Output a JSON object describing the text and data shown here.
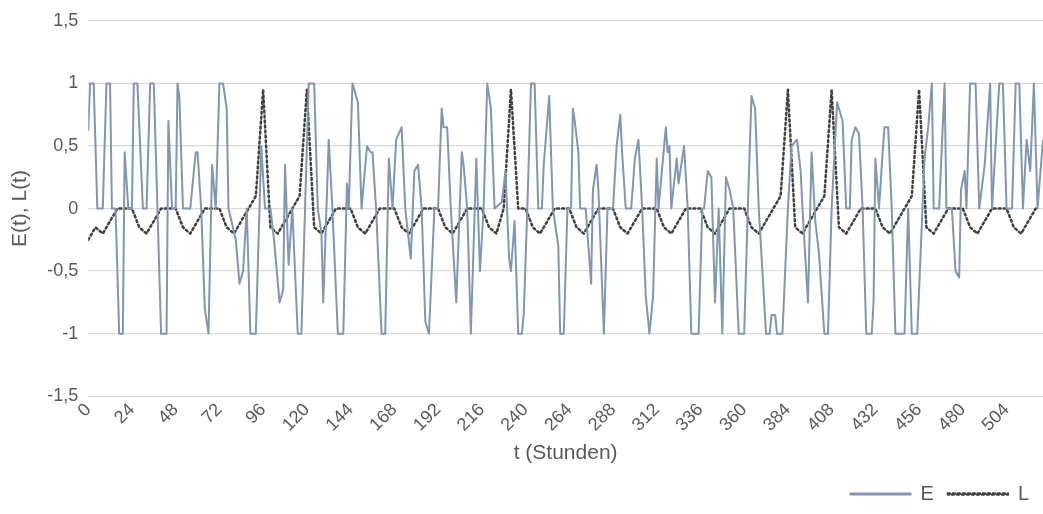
{
  "chart_data": {
    "type": "line",
    "xlabel": "t (Stunden)",
    "ylabel": "E(t), L(t)",
    "xlim": [
      0,
      524
    ],
    "xticks": [
      0,
      24,
      48,
      72,
      96,
      120,
      144,
      168,
      192,
      216,
      240,
      264,
      288,
      312,
      336,
      360,
      384,
      408,
      432,
      456,
      480,
      504
    ],
    "ylim": [
      -1.5,
      1.5
    ],
    "yticks": [
      {
        "value": -1.5,
        "label": "-1,5"
      },
      -1,
      {
        "value": -0.5,
        "label": "-0,5"
      },
      0,
      {
        "value": 0.5,
        "label": "0,5"
      },
      1,
      {
        "value": 1.5,
        "label": "1,5"
      }
    ],
    "grid": "y",
    "legend": "bottom right",
    "marker": "none",
    "series": [
      {
        "name": "E",
        "color": "#7f97b4",
        "line_style": "solid",
        "x": [
          0,
          1,
          3,
          5,
          8,
          10,
          12,
          13,
          15,
          17,
          19,
          20,
          22,
          24,
          25,
          27,
          30,
          32,
          34,
          36,
          38,
          40,
          43,
          44,
          46,
          48,
          49,
          50,
          52,
          56,
          59,
          60,
          62,
          64,
          66,
          68,
          70,
          72,
          74,
          76,
          77,
          81,
          83,
          85,
          87,
          89,
          92,
          94,
          95,
          97,
          100,
          102,
          105,
          107,
          108,
          110,
          112,
          115,
          117,
          119,
          121,
          124,
          126,
          128,
          129,
          132,
          134,
          137,
          140,
          142,
          143,
          145,
          148,
          150,
          153,
          155,
          156,
          158,
          161,
          163,
          165,
          167,
          169,
          172,
          174,
          177,
          179,
          181,
          183,
          185,
          187,
          190,
          192,
          194,
          195,
          197,
          199,
          202,
          205,
          206,
          208,
          210,
          213,
          215,
          217,
          219,
          221,
          223,
          227,
          229,
          231,
          232,
          234,
          236,
          238,
          239,
          241,
          243,
          245,
          247,
          249,
          250,
          253,
          255,
          258,
          259,
          261,
          263,
          265,
          266,
          267,
          269,
          270,
          273,
          276,
          277,
          279,
          280,
          283,
          285,
          288,
          290,
          292,
          293,
          295,
          298,
          300,
          302,
          304,
          306,
          308,
          310,
          312,
          313,
          317,
          318,
          319,
          320,
          323,
          324,
          327,
          329,
          331,
          335,
          337,
          338,
          340,
          342,
          344,
          346,
          348,
          350,
          352,
          354,
          357,
          360,
          362,
          364,
          366,
          368,
          372,
          374,
          375,
          377,
          378,
          381,
          384,
          386,
          389,
          391,
          392,
          395,
          397,
          399,
          401,
          404,
          406,
          408,
          411,
          414,
          416,
          418,
          419,
          421,
          423,
          425,
          427,
          430,
          431,
          432,
          434,
          436,
          437,
          439,
          441,
          443,
          448,
          450,
          452,
          455,
          459,
          461,
          463,
          464,
          467,
          470,
          471,
          474,
          476,
          478,
          479,
          481,
          482,
          484,
          487,
          489,
          492,
          495,
          496,
          500,
          502,
          504,
          507,
          509,
          511,
          513,
          515,
          517,
          519,
          521,
          524
        ],
        "values": [
          0.62,
          1,
          1,
          0,
          0,
          1,
          1,
          0,
          0,
          -1,
          -1,
          0.45,
          0,
          0,
          1,
          1,
          0,
          0,
          1,
          1,
          0,
          -1,
          -1,
          0.7,
          0,
          0,
          1,
          0.9,
          0,
          0,
          0.45,
          0.45,
          0,
          -0.8,
          -1,
          0.35,
          0,
          1,
          1,
          0.8,
          0,
          -0.25,
          -0.6,
          -0.5,
          0,
          -1,
          -1,
          0,
          0.5,
          0,
          0,
          -0.25,
          -0.75,
          -0.65,
          0.35,
          -0.45,
          0,
          -1,
          -1,
          0,
          1,
          1,
          0,
          -0.2,
          -0.75,
          0.55,
          0,
          -1,
          -1,
          0.2,
          0,
          1,
          0.85,
          0,
          0.5,
          0.45,
          0.45,
          0,
          -1,
          -1,
          0.4,
          0,
          0.55,
          0.65,
          0,
          -0.4,
          0.3,
          0.35,
          0,
          -0.9,
          -1,
          0,
          0,
          0.8,
          0.65,
          0.65,
          0,
          -0.75,
          0.45,
          0.35,
          0,
          -1,
          0.4,
          -0.5,
          0,
          1,
          0.8,
          0,
          0.05,
          0.3,
          -0.4,
          -0.5,
          -0.1,
          -1,
          -1,
          -0.85,
          0,
          1,
          1,
          0,
          0,
          0.35,
          0.9,
          0,
          -0.3,
          -1,
          -1,
          0,
          0,
          0.8,
          0.7,
          0.45,
          0,
          0,
          -0.6,
          0.15,
          0.35,
          0.15,
          -1,
          0,
          0,
          0.5,
          0.75,
          0.45,
          0,
          0,
          0.4,
          0.55,
          0,
          -0.7,
          -1,
          -0.7,
          0.4,
          0,
          0.65,
          0.45,
          0.5,
          0,
          0.4,
          0.2,
          0.5,
          0,
          -1,
          -1,
          0,
          0,
          0.3,
          0.25,
          -0.75,
          0,
          -1,
          0.25,
          0.15,
          0,
          -1,
          -1,
          0,
          0.9,
          0.8,
          0,
          -1,
          -1,
          -0.85,
          -0.85,
          -1,
          -1,
          0,
          0.5,
          0.55,
          0.3,
          0,
          -0.75,
          0.45,
          -0.1,
          -0.35,
          -1,
          -1,
          0,
          0.85,
          0.7,
          0,
          0,
          0.55,
          0.65,
          0.6,
          0,
          -1,
          -1,
          -0.75,
          0.4,
          0,
          0.45,
          0.65,
          0.65,
          0,
          -1,
          -1,
          0,
          -1,
          -1,
          0.4,
          0.65,
          1,
          0,
          0,
          1,
          0,
          0,
          -0.5,
          -0.55,
          0.15,
          0.3,
          0,
          1,
          1,
          0,
          0.35,
          1,
          0,
          1,
          1,
          0,
          0,
          1,
          1,
          0,
          0.55,
          0.3,
          1,
          0,
          0.55
        ]
      },
      {
        "name": "L",
        "color": "#404040",
        "line_style": "dotted",
        "x": [
          0,
          4,
          8,
          12,
          16,
          20,
          24,
          28,
          32,
          36,
          40,
          44,
          48,
          52,
          56,
          60,
          64,
          68,
          72,
          76,
          80,
          84,
          88,
          92,
          96,
          100,
          104,
          108,
          112,
          116,
          120,
          124,
          128,
          132,
          136,
          140,
          144,
          148,
          152,
          156,
          160,
          164,
          168,
          172,
          176,
          180,
          184,
          188,
          192,
          196,
          200,
          204,
          208,
          212,
          216,
          220,
          224,
          228,
          232,
          236,
          240,
          244,
          248,
          252,
          256,
          260,
          264,
          268,
          272,
          276,
          280,
          284,
          288,
          292,
          296,
          300,
          304,
          308,
          312,
          316,
          320,
          324,
          328,
          332,
          336,
          340,
          344,
          348,
          352,
          356,
          360,
          364,
          368,
          372,
          376,
          380,
          384,
          388,
          392,
          396,
          400,
          404,
          408,
          412,
          416,
          420,
          424,
          428,
          432,
          436,
          440,
          444,
          448,
          452,
          456,
          460,
          464,
          468,
          472,
          476,
          480,
          484,
          488,
          492,
          496,
          500,
          504,
          508,
          512,
          516,
          520
        ],
        "values": [
          -0.25,
          -0.15,
          -0.2,
          -0.1,
          0,
          0,
          0,
          -0.15,
          -0.2,
          -0.1,
          0,
          0,
          0,
          -0.15,
          -0.2,
          -0.1,
          0,
          0,
          0,
          -0.15,
          -0.2,
          -0.1,
          0,
          0.1,
          0.95,
          -0.15,
          -0.2,
          -0.1,
          0,
          0.1,
          0.95,
          -0.15,
          -0.2,
          -0.1,
          0,
          0,
          0,
          -0.15,
          -0.2,
          -0.1,
          0,
          0,
          0,
          -0.15,
          -0.2,
          -0.1,
          0,
          0,
          0,
          -0.15,
          -0.2,
          -0.1,
          0,
          0,
          0,
          -0.15,
          -0.2,
          0,
          0.95,
          0,
          0,
          -0.15,
          -0.2,
          -0.1,
          0,
          0,
          0,
          -0.15,
          -0.2,
          -0.1,
          0,
          0,
          0,
          -0.15,
          -0.2,
          -0.1,
          0,
          0,
          0,
          -0.15,
          -0.2,
          -0.1,
          0,
          0,
          0,
          -0.15,
          -0.2,
          -0.1,
          0,
          0,
          0,
          -0.15,
          -0.2,
          -0.1,
          0,
          0.1,
          0.95,
          -0.15,
          -0.2,
          -0.1,
          0,
          0.1,
          0.95,
          -0.15,
          -0.2,
          -0.1,
          0,
          0,
          0,
          -0.15,
          -0.2,
          -0.1,
          0,
          0.1,
          0.95,
          -0.15,
          -0.2,
          -0.1,
          0,
          0,
          0,
          -0.15,
          -0.2,
          -0.1,
          0,
          0,
          0,
          -0.15,
          -0.2,
          -0.1,
          0
        ]
      }
    ]
  }
}
